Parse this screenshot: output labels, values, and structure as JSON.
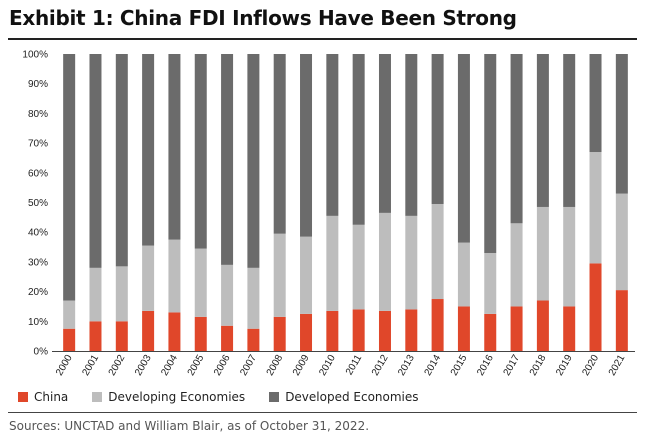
{
  "title": "Exhibit 1: China FDI Inflows Have Been Strong",
  "source": "Sources: UNCTAD and William Blair, as of October 31, 2022.",
  "colors": {
    "China": "#e0472a",
    "Developing Economies": "#bdbdbd",
    "Developed Economies": "#6b6b6b"
  },
  "chart_data": {
    "type": "bar",
    "stacked": true,
    "title": "Exhibit 1: China FDI Inflows Have Been Strong",
    "xlabel": "",
    "ylabel": "",
    "ylim": [
      0,
      100
    ],
    "ytick_labels": [
      "0%",
      "10%",
      "20%",
      "30%",
      "40%",
      "50%",
      "60%",
      "70%",
      "80%",
      "90%",
      "100%"
    ],
    "categories": [
      "2000",
      "2001",
      "2002",
      "2003",
      "2004",
      "2005",
      "2006",
      "2007",
      "2008",
      "2009",
      "2010",
      "2011",
      "2012",
      "2013",
      "2014",
      "2015",
      "2016",
      "2017",
      "2018",
      "2019",
      "2020",
      "2021"
    ],
    "series": [
      {
        "name": "China",
        "values": [
          7.5,
          10,
          10,
          13.5,
          13,
          11.5,
          8.5,
          7.5,
          11.5,
          12.5,
          13.5,
          14,
          13.5,
          14,
          17.5,
          15,
          12.5,
          15,
          17,
          15,
          29.5,
          20.5
        ]
      },
      {
        "name": "Developing Economies",
        "values": [
          9.5,
          18,
          18.5,
          22,
          24.5,
          23,
          20.5,
          20.5,
          28,
          26,
          32,
          28.5,
          33,
          31.5,
          32,
          21.5,
          20.5,
          28,
          31.5,
          33.5,
          37.5,
          32.5
        ]
      },
      {
        "name": "Developed Economies",
        "values": [
          83,
          72,
          71.5,
          64.5,
          62.5,
          65.5,
          71,
          72,
          60.5,
          61.5,
          54.5,
          57.5,
          53.5,
          54.5,
          50.5,
          63.5,
          67,
          57,
          51.5,
          51.5,
          33,
          47
        ]
      }
    ],
    "grid": false,
    "legend_position": "bottom-left"
  }
}
